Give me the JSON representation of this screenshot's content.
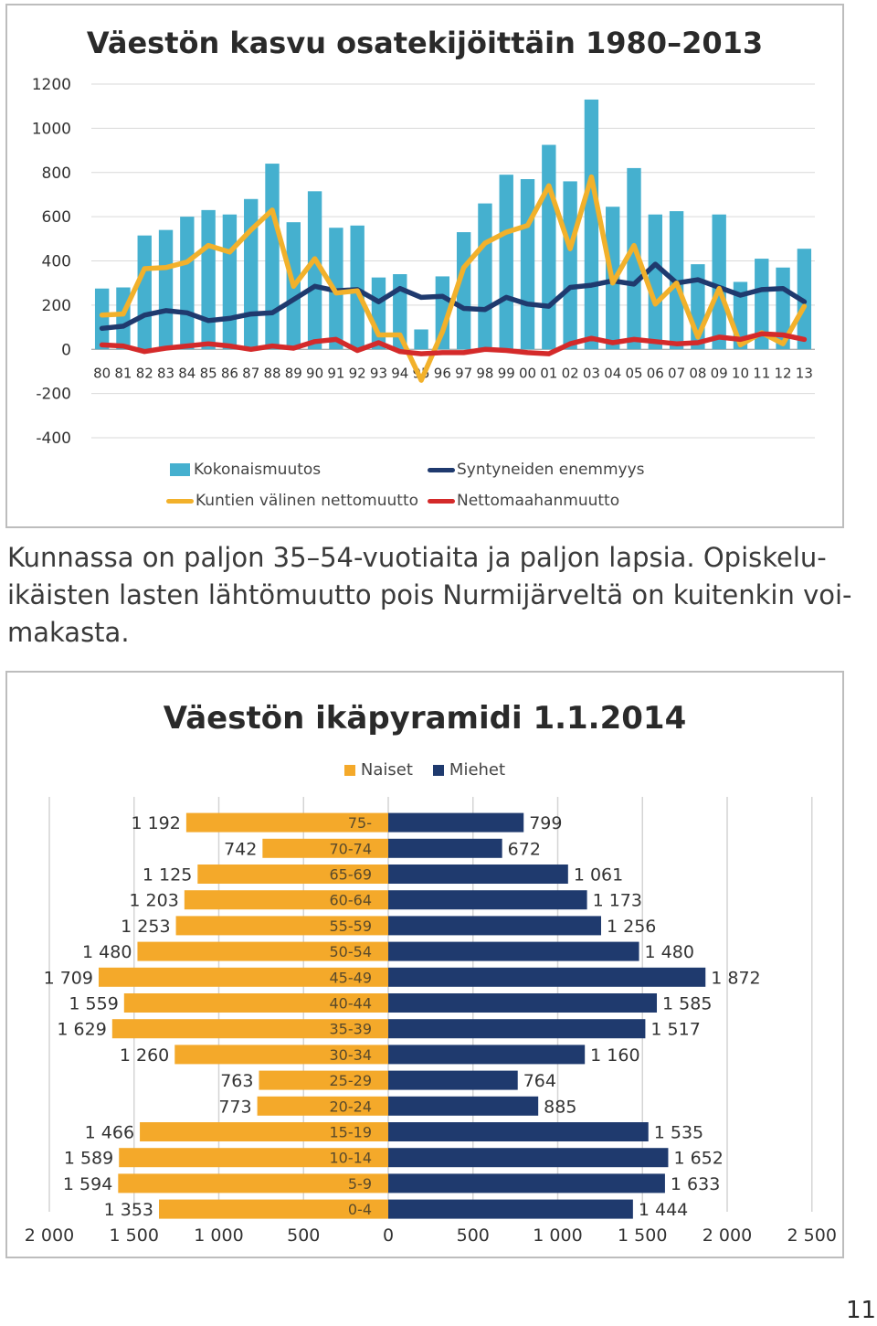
{
  "chart_data": [
    {
      "type": "bar",
      "title": "Väestön kasvu osatekijöittäin 1980–2013",
      "categories": [
        "80",
        "81",
        "82",
        "83",
        "84",
        "85",
        "86",
        "87",
        "88",
        "89",
        "90",
        "91",
        "92",
        "93",
        "94",
        "95",
        "96",
        "97",
        "98",
        "99",
        "00",
        "01",
        "02",
        "03",
        "04",
        "05",
        "06",
        "07",
        "08",
        "09",
        "10",
        "11",
        "12",
        "13"
      ],
      "ylim": [
        -400,
        1200
      ],
      "yticks": [
        1200,
        1000,
        800,
        600,
        400,
        200,
        0,
        -200,
        -400
      ],
      "grid": true,
      "legend_position": "bottom",
      "series": [
        {
          "name": "Kokonaismuutos",
          "type": "bar",
          "color": "#45b0cf",
          "values": [
            275,
            280,
            515,
            540,
            600,
            630,
            610,
            680,
            840,
            575,
            715,
            550,
            560,
            325,
            340,
            90,
            330,
            530,
            660,
            790,
            770,
            925,
            760,
            1130,
            645,
            820,
            610,
            625,
            385,
            610,
            305,
            410,
            370,
            455
          ]
        },
        {
          "name": "Syntyneiden enemmyys",
          "type": "line",
          "color": "#1f3a6e",
          "values": [
            95,
            105,
            155,
            175,
            165,
            130,
            140,
            160,
            165,
            225,
            285,
            265,
            270,
            215,
            275,
            235,
            240,
            185,
            180,
            235,
            205,
            195,
            280,
            290,
            310,
            295,
            385,
            300,
            315,
            280,
            245,
            270,
            275,
            215
          ]
        },
        {
          "name": "Kuntien välinen nettomuutto",
          "type": "line",
          "color": "#f2b12b",
          "values": [
            155,
            160,
            365,
            370,
            395,
            470,
            440,
            540,
            630,
            285,
            410,
            255,
            265,
            65,
            65,
            -140,
            80,
            370,
            480,
            530,
            560,
            740,
            455,
            780,
            300,
            470,
            205,
            300,
            55,
            275,
            20,
            75,
            25,
            195
          ]
        },
        {
          "name": "Nettomaahanmuutto",
          "type": "line",
          "color": "#d42a2a",
          "values": [
            20,
            15,
            -10,
            5,
            15,
            25,
            15,
            0,
            15,
            5,
            35,
            45,
            -5,
            30,
            -10,
            -20,
            -15,
            -15,
            0,
            -5,
            -15,
            -20,
            25,
            50,
            30,
            45,
            35,
            25,
            30,
            55,
            45,
            70,
            65,
            45
          ]
        }
      ]
    },
    {
      "type": "bar",
      "orientation": "horizontal",
      "title": "Väestön ikäpyramidi 1.1.2014",
      "legend_position": "top",
      "categories": [
        "75-",
        "70-74",
        "65-69",
        "60-64",
        "55-59",
        "50-54",
        "45-49",
        "40-44",
        "35-39",
        "30-34",
        "25-29",
        "20-24",
        "15-19",
        "10-14",
        "5-9",
        "0-4"
      ],
      "xlim": [
        -2000,
        2500
      ],
      "xticks": [
        "2 000",
        "1 500",
        "1 000",
        "500",
        "0",
        "500",
        "1 000",
        "1 500",
        "2 000",
        "2 500"
      ],
      "series": [
        {
          "name": "Naiset",
          "color": "#f4a92a",
          "values": [
            1192,
            742,
            1125,
            1203,
            1253,
            1480,
            1709,
            1559,
            1629,
            1260,
            763,
            773,
            1466,
            1589,
            1594,
            1353
          ],
          "labels": [
            "1 192",
            "742",
            "1 125",
            "1 203",
            "1 253",
            "1 480",
            "1 709",
            "1 559",
            "1 629",
            "1 260",
            "763",
            "773",
            "1 466",
            "1 589",
            "1 594",
            "1 353"
          ]
        },
        {
          "name": "Miehet",
          "color": "#1f3a6e",
          "values": [
            799,
            672,
            1061,
            1173,
            1256,
            1480,
            1872,
            1585,
            1517,
            1160,
            764,
            885,
            1535,
            1652,
            1633,
            1444
          ],
          "labels": [
            "799",
            "672",
            "1 061",
            "1 173",
            "1 256",
            "1 480",
            "1 872",
            "1 585",
            "1 517",
            "1 160",
            "764",
            "885",
            "1 535",
            "1 652",
            "1 633",
            "1 444"
          ]
        }
      ]
    }
  ],
  "caption": {
    "line1": "Kunnassa on paljon 35–54-vuotiaita ja paljon lapsia. Opiskelu-",
    "line2": "ikäisten lasten lähtömuutto pois Nurmijärveltä on kuitenkin voi-",
    "line3": "makasta."
  },
  "page_number": "11"
}
